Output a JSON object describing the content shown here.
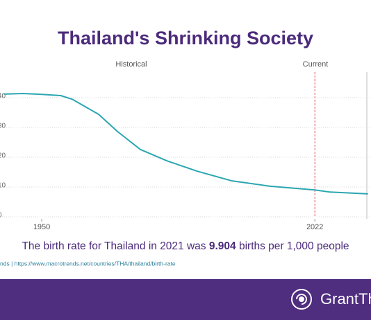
{
  "chart_data": {
    "type": "line",
    "title": "Thailand's Shrinking Society",
    "annotations": [
      "Historical",
      "Current"
    ],
    "subtitle_parts": [
      "The birth rate for Thailand in 2021 was ",
      "9.904",
      " births per 1,000 people"
    ],
    "source": "nds | https://www.macrotrends.net/countries/THA/thailand/birth-rate",
    "brand": "GrantTh",
    "x": [
      1940,
      1945,
      1950,
      1955,
      1958,
      1965,
      1970,
      1976,
      1983,
      1991,
      2000,
      2010,
      2022,
      2026,
      2036
    ],
    "series": [
      {
        "name": "Birth rate",
        "color": "#2ba6b1",
        "values": [
          41.2,
          41.4,
          41.1,
          40.7,
          39.5,
          34.4,
          28.6,
          22.6,
          18.8,
          15.3,
          12.1,
          10.3,
          9.0,
          8.3,
          7.7
        ]
      }
    ],
    "xlim": [
      1939,
      2036.8
    ],
    "xticks": [
      1950,
      2022
    ],
    "ylim": [
      0,
      45
    ],
    "yticks": [
      0,
      10,
      20,
      30,
      40
    ],
    "current_year": 2022,
    "grid": true
  }
}
